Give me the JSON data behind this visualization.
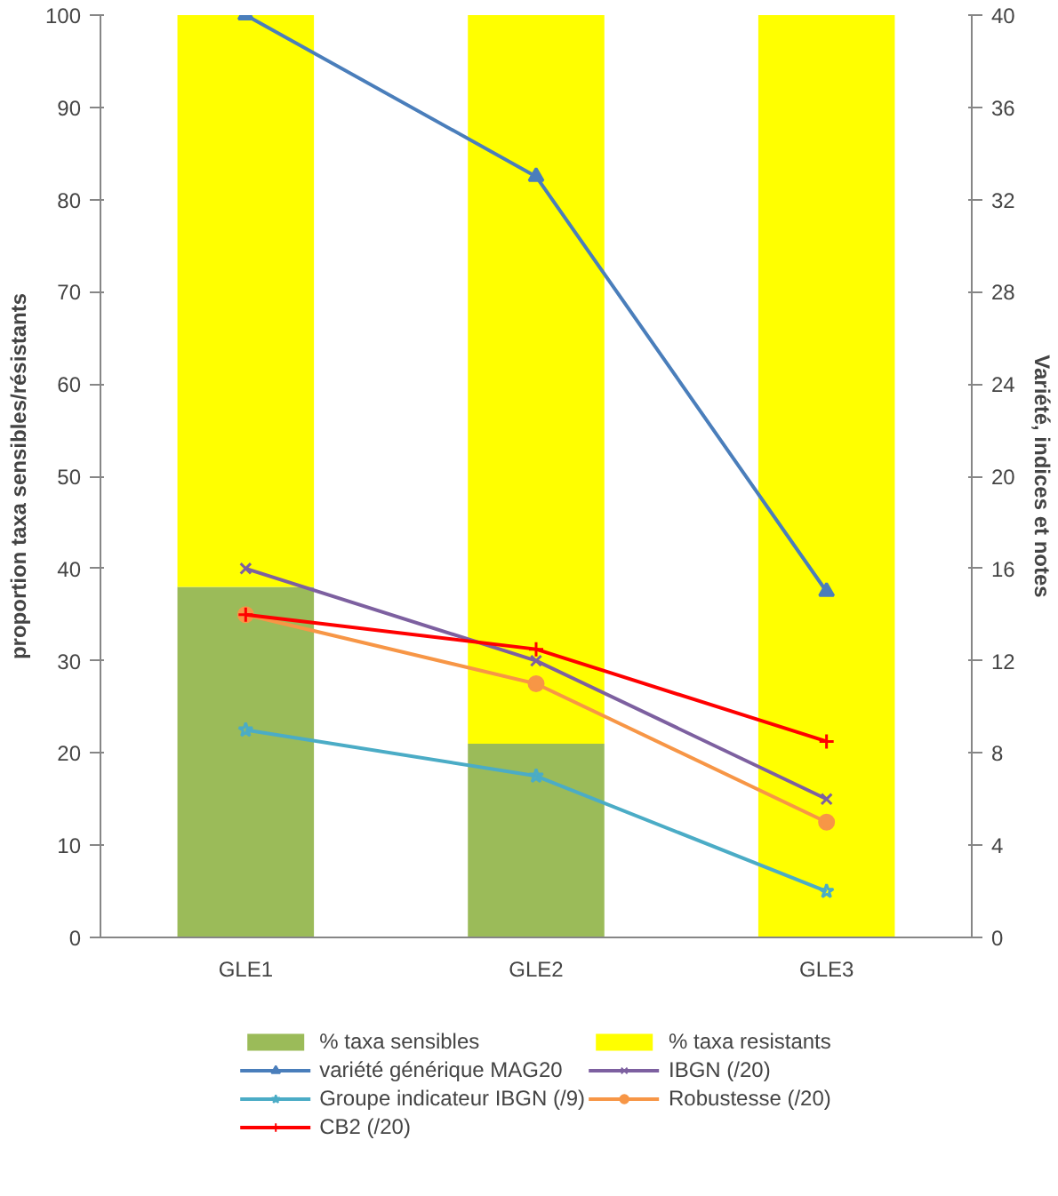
{
  "chart_data": {
    "type": "bar",
    "stacked": true,
    "ylabel": "proportion taxa sensibles/résistants",
    "y2label": "Variété, indices et notes",
    "categories": [
      "GLE1",
      "GLE2",
      "GLE3"
    ],
    "ylim": [
      0,
      100
    ],
    "yticks": [
      0,
      10,
      20,
      30,
      40,
      50,
      60,
      70,
      80,
      90,
      100
    ],
    "y2lim": [
      0,
      40
    ],
    "y2ticks": [
      0,
      4,
      8,
      12,
      16,
      20,
      24,
      28,
      32,
      36,
      40
    ],
    "grid": false,
    "legend": "bottom",
    "series": [
      {
        "name": "% taxa sensibles",
        "color": "#9bbb59",
        "values": [
          38,
          21,
          0
        ]
      },
      {
        "name": "% taxa resistants",
        "color": "#ffff00",
        "values": [
          62,
          79,
          100
        ]
      },
      {
        "name": "variété générique MAG20",
        "type": "line",
        "axis": "y2",
        "marker": "triangle",
        "color": "#4a7ebb",
        "values": [
          40,
          33,
          15
        ]
      },
      {
        "name": "IBGN (/20)",
        "type": "line",
        "axis": "y2",
        "marker": "x",
        "color": "#7d60a0",
        "values": [
          16,
          12,
          6
        ]
      },
      {
        "name": "Groupe indicateur IBGN (/9)",
        "type": "line",
        "axis": "y2",
        "marker": "star",
        "color": "#4bacc6",
        "values": [
          9,
          7,
          2
        ]
      },
      {
        "name": "Robustesse (/20)",
        "type": "line",
        "axis": "y2",
        "marker": "circle",
        "color": "#f79646",
        "values": [
          14,
          11,
          5
        ]
      },
      {
        "name": "CB2 (/20)",
        "type": "line",
        "axis": "y2",
        "marker": "cross",
        "color": "#ff0000",
        "values": [
          14,
          12.5,
          8.5
        ]
      }
    ]
  }
}
